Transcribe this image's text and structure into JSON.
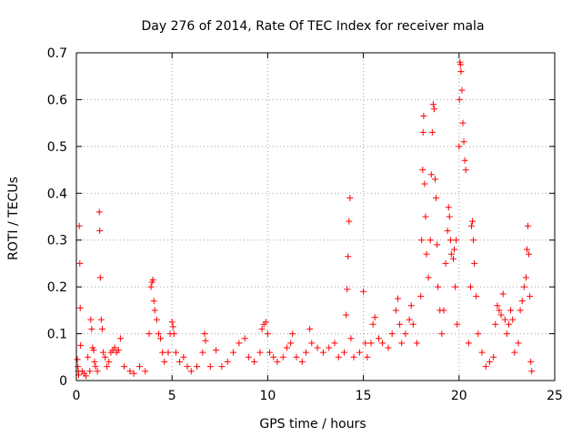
{
  "chart_data": {
    "type": "scatter",
    "title": "Day 276 of 2014, Rate Of TEC Index for receiver mala",
    "xlabel": "GPS time / hours",
    "ylabel": "ROTI / TECUs",
    "xlim": [
      0,
      25
    ],
    "ylim": [
      0,
      0.7
    ],
    "xticks": [
      0,
      5,
      10,
      15,
      20,
      25
    ],
    "yticks": [
      0,
      0.1,
      0.2,
      0.3,
      0.4,
      0.5,
      0.6,
      0.7
    ],
    "xtick_labels": [
      "0",
      "5",
      "10",
      "15",
      "20",
      "25"
    ],
    "ytick_labels": [
      "0",
      "0.1",
      "0.2",
      "0.3",
      "0.4",
      "0.5",
      "0.6",
      "0.7"
    ],
    "grid": true,
    "marker": "+",
    "color": "#ff0000",
    "series": [
      {
        "name": "ROTI",
        "points": [
          [
            0.05,
            0.045
          ],
          [
            0.08,
            0.03
          ],
          [
            0.1,
            0.02
          ],
          [
            0.12,
            0.012
          ],
          [
            0.15,
            0.33
          ],
          [
            0.18,
            0.25
          ],
          [
            0.2,
            0.155
          ],
          [
            0.22,
            0.075
          ],
          [
            0.3,
            0.02
          ],
          [
            0.4,
            0.015
          ],
          [
            0.5,
            0.01
          ],
          [
            0.6,
            0.05
          ],
          [
            0.7,
            0.02
          ],
          [
            0.75,
            0.13
          ],
          [
            0.8,
            0.11
          ],
          [
            0.85,
            0.07
          ],
          [
            0.9,
            0.065
          ],
          [
            0.95,
            0.04
          ],
          [
            1.0,
            0.03
          ],
          [
            1.1,
            0.02
          ],
          [
            1.2,
            0.36
          ],
          [
            1.22,
            0.32
          ],
          [
            1.25,
            0.22
          ],
          [
            1.3,
            0.13
          ],
          [
            1.35,
            0.11
          ],
          [
            1.4,
            0.06
          ],
          [
            1.5,
            0.05
          ],
          [
            1.6,
            0.03
          ],
          [
            1.7,
            0.04
          ],
          [
            1.8,
            0.06
          ],
          [
            1.9,
            0.065
          ],
          [
            2.0,
            0.07
          ],
          [
            2.1,
            0.06
          ],
          [
            2.2,
            0.065
          ],
          [
            2.3,
            0.09
          ],
          [
            2.5,
            0.03
          ],
          [
            2.8,
            0.02
          ],
          [
            3.0,
            0.015
          ],
          [
            3.3,
            0.03
          ],
          [
            3.6,
            0.02
          ],
          [
            3.8,
            0.1
          ],
          [
            3.9,
            0.2
          ],
          [
            3.95,
            0.21
          ],
          [
            4.0,
            0.215
          ],
          [
            4.05,
            0.17
          ],
          [
            4.1,
            0.15
          ],
          [
            4.2,
            0.13
          ],
          [
            4.3,
            0.1
          ],
          [
            4.4,
            0.09
          ],
          [
            4.5,
            0.06
          ],
          [
            4.6,
            0.04
          ],
          [
            4.8,
            0.06
          ],
          [
            4.9,
            0.1
          ],
          [
            5.0,
            0.125
          ],
          [
            5.05,
            0.115
          ],
          [
            5.1,
            0.1
          ],
          [
            5.2,
            0.06
          ],
          [
            5.4,
            0.04
          ],
          [
            5.6,
            0.05
          ],
          [
            5.8,
            0.03
          ],
          [
            6.0,
            0.02
          ],
          [
            6.3,
            0.03
          ],
          [
            6.6,
            0.06
          ],
          [
            6.7,
            0.1
          ],
          [
            6.75,
            0.085
          ],
          [
            7.0,
            0.03
          ],
          [
            7.3,
            0.065
          ],
          [
            7.6,
            0.03
          ],
          [
            7.9,
            0.04
          ],
          [
            8.2,
            0.06
          ],
          [
            8.5,
            0.08
          ],
          [
            8.8,
            0.09
          ],
          [
            9.0,
            0.05
          ],
          [
            9.3,
            0.04
          ],
          [
            9.6,
            0.06
          ],
          [
            9.7,
            0.11
          ],
          [
            9.8,
            0.12
          ],
          [
            9.9,
            0.125
          ],
          [
            10.0,
            0.1
          ],
          [
            10.1,
            0.06
          ],
          [
            10.3,
            0.05
          ],
          [
            10.5,
            0.04
          ],
          [
            10.8,
            0.05
          ],
          [
            11.0,
            0.07
          ],
          [
            11.2,
            0.08
          ],
          [
            11.3,
            0.1
          ],
          [
            11.5,
            0.05
          ],
          [
            11.8,
            0.04
          ],
          [
            12.0,
            0.06
          ],
          [
            12.2,
            0.11
          ],
          [
            12.3,
            0.08
          ],
          [
            12.6,
            0.07
          ],
          [
            12.9,
            0.06
          ],
          [
            13.2,
            0.07
          ],
          [
            13.5,
            0.08
          ],
          [
            13.7,
            0.05
          ],
          [
            14.0,
            0.06
          ],
          [
            14.1,
            0.14
          ],
          [
            14.15,
            0.195
          ],
          [
            14.2,
            0.265
          ],
          [
            14.25,
            0.34
          ],
          [
            14.3,
            0.39
          ],
          [
            14.35,
            0.09
          ],
          [
            14.5,
            0.05
          ],
          [
            14.8,
            0.06
          ],
          [
            15.0,
            0.19
          ],
          [
            15.1,
            0.08
          ],
          [
            15.2,
            0.05
          ],
          [
            15.4,
            0.08
          ],
          [
            15.5,
            0.12
          ],
          [
            15.6,
            0.135
          ],
          [
            15.8,
            0.09
          ],
          [
            16.0,
            0.08
          ],
          [
            16.3,
            0.07
          ],
          [
            16.5,
            0.1
          ],
          [
            16.7,
            0.15
          ],
          [
            16.8,
            0.175
          ],
          [
            16.9,
            0.12
          ],
          [
            17.0,
            0.08
          ],
          [
            17.2,
            0.1
          ],
          [
            17.4,
            0.13
          ],
          [
            17.5,
            0.16
          ],
          [
            17.6,
            0.12
          ],
          [
            17.8,
            0.08
          ],
          [
            18.0,
            0.18
          ],
          [
            18.05,
            0.3
          ],
          [
            18.1,
            0.45
          ],
          [
            18.12,
            0.53
          ],
          [
            18.15,
            0.565
          ],
          [
            18.2,
            0.42
          ],
          [
            18.25,
            0.35
          ],
          [
            18.3,
            0.27
          ],
          [
            18.4,
            0.22
          ],
          [
            18.5,
            0.3
          ],
          [
            18.55,
            0.44
          ],
          [
            18.6,
            0.53
          ],
          [
            18.65,
            0.59
          ],
          [
            18.7,
            0.58
          ],
          [
            18.75,
            0.43
          ],
          [
            18.8,
            0.39
          ],
          [
            18.85,
            0.29
          ],
          [
            18.9,
            0.2
          ],
          [
            19.0,
            0.15
          ],
          [
            19.1,
            0.1
          ],
          [
            19.2,
            0.15
          ],
          [
            19.3,
            0.25
          ],
          [
            19.4,
            0.32
          ],
          [
            19.45,
            0.37
          ],
          [
            19.5,
            0.35
          ],
          [
            19.55,
            0.3
          ],
          [
            19.6,
            0.27
          ],
          [
            19.7,
            0.26
          ],
          [
            19.75,
            0.28
          ],
          [
            19.8,
            0.2
          ],
          [
            19.85,
            0.3
          ],
          [
            19.9,
            0.12
          ],
          [
            20.0,
            0.5
          ],
          [
            20.02,
            0.6
          ],
          [
            20.05,
            0.68
          ],
          [
            20.08,
            0.675
          ],
          [
            20.1,
            0.66
          ],
          [
            20.15,
            0.62
          ],
          [
            20.2,
            0.55
          ],
          [
            20.25,
            0.51
          ],
          [
            20.3,
            0.47
          ],
          [
            20.35,
            0.45
          ],
          [
            20.5,
            0.08
          ],
          [
            20.6,
            0.2
          ],
          [
            20.65,
            0.33
          ],
          [
            20.7,
            0.34
          ],
          [
            20.75,
            0.3
          ],
          [
            20.8,
            0.25
          ],
          [
            20.9,
            0.18
          ],
          [
            21.0,
            0.1
          ],
          [
            21.2,
            0.06
          ],
          [
            21.4,
            0.03
          ],
          [
            21.6,
            0.04
          ],
          [
            21.8,
            0.05
          ],
          [
            21.9,
            0.12
          ],
          [
            22.0,
            0.16
          ],
          [
            22.1,
            0.15
          ],
          [
            22.2,
            0.14
          ],
          [
            22.3,
            0.185
          ],
          [
            22.4,
            0.13
          ],
          [
            22.5,
            0.1
          ],
          [
            22.6,
            0.12
          ],
          [
            22.7,
            0.15
          ],
          [
            22.8,
            0.13
          ],
          [
            22.9,
            0.06
          ],
          [
            23.1,
            0.08
          ],
          [
            23.2,
            0.15
          ],
          [
            23.3,
            0.17
          ],
          [
            23.4,
            0.2
          ],
          [
            23.5,
            0.22
          ],
          [
            23.55,
            0.28
          ],
          [
            23.6,
            0.33
          ],
          [
            23.65,
            0.27
          ],
          [
            23.7,
            0.18
          ],
          [
            23.75,
            0.04
          ],
          [
            23.8,
            0.02
          ]
        ]
      }
    ]
  }
}
